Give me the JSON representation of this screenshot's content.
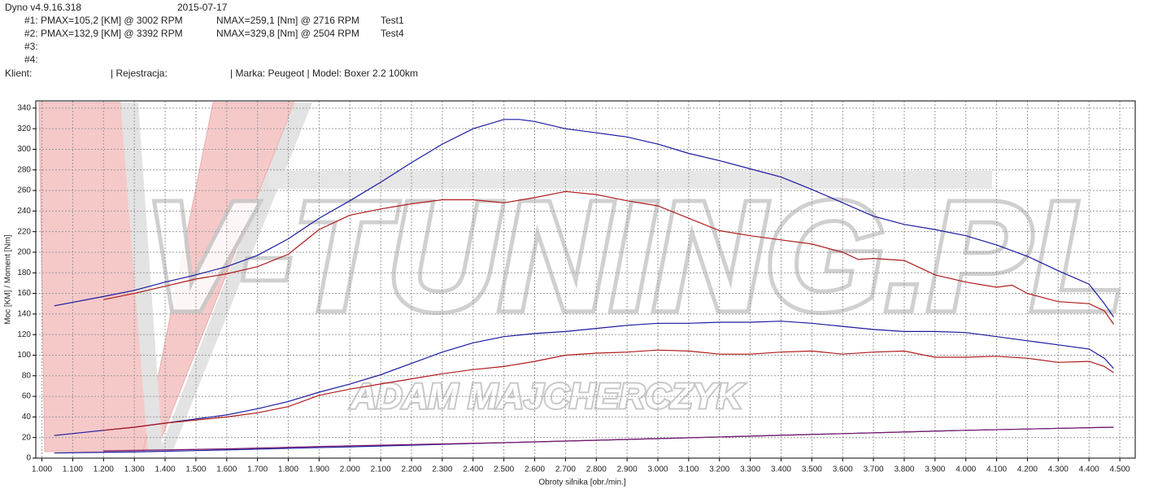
{
  "header": {
    "version": "Dyno v4.9.16.318",
    "date": "2015-07-17",
    "runs": [
      {
        "id": "#1:",
        "pmax": "PMAX=105,2 [KM] @ 3002 RPM",
        "nmax": "NMAX=259,1 [Nm] @ 2716 RPM",
        "name": "Test1"
      },
      {
        "id": "#2:",
        "pmax": "PMAX=132,9 [KM] @ 3392 RPM",
        "nmax": "NMAX=329,8 [Nm] @ 2504 RPM",
        "name": "Test4"
      },
      {
        "id": "#3:"
      },
      {
        "id": "#4:"
      }
    ],
    "client": "Klient:",
    "registration": "| Rejestracja:",
    "vehicle": "| Marka: Peugeot | Model: Boxer 2.2 100km"
  },
  "chart_data": {
    "type": "line",
    "xlabel": "Obroty silnika [obr./min.]",
    "ylabel": "Moc [KM] / Moment [Nm]",
    "watermark": "V-TUNING.PL",
    "watermark_sub": "ADAM MAJCHERCZYK",
    "xlim": [
      980,
      4550
    ],
    "ylim": [
      0,
      347
    ],
    "grid": true,
    "xticks": [
      {
        "value": 1000,
        "label": "1.000"
      },
      {
        "value": 1100,
        "label": "1.100"
      },
      {
        "value": 1200,
        "label": "1.200"
      },
      {
        "value": 1300,
        "label": "1.300"
      },
      {
        "value": 1400,
        "label": "1.400"
      },
      {
        "value": 1500,
        "label": "1.500"
      },
      {
        "value": 1600,
        "label": "1.600"
      },
      {
        "value": 1700,
        "label": "1.700"
      },
      {
        "value": 1800,
        "label": "1.800"
      },
      {
        "value": 1900,
        "label": "1.900"
      },
      {
        "value": 2000,
        "label": "2.000"
      },
      {
        "value": 2100,
        "label": "2.100"
      },
      {
        "value": 2200,
        "label": "2.200"
      },
      {
        "value": 2300,
        "label": "2.300"
      },
      {
        "value": 2400,
        "label": "2.400"
      },
      {
        "value": 2500,
        "label": "2.500"
      },
      {
        "value": 2600,
        "label": "2.600"
      },
      {
        "value": 2700,
        "label": "2.700"
      },
      {
        "value": 2800,
        "label": "2.800"
      },
      {
        "value": 2900,
        "label": "2.900"
      },
      {
        "value": 3000,
        "label": "3.000"
      },
      {
        "value": 3100,
        "label": "3.100"
      },
      {
        "value": 3200,
        "label": "3.200"
      },
      {
        "value": 3300,
        "label": "3.300"
      },
      {
        "value": 3400,
        "label": "3.400"
      },
      {
        "value": 3500,
        "label": "3.500"
      },
      {
        "value": 3600,
        "label": "3.600"
      },
      {
        "value": 3700,
        "label": "3.700"
      },
      {
        "value": 3800,
        "label": "3.800"
      },
      {
        "value": 3900,
        "label": "3.900"
      },
      {
        "value": 4000,
        "label": "4.000"
      },
      {
        "value": 4100,
        "label": "4.100"
      },
      {
        "value": 4200,
        "label": "4.200"
      },
      {
        "value": 4300,
        "label": "4.300"
      },
      {
        "value": 4400,
        "label": "4.400"
      },
      {
        "value": 4500,
        "label": "4.500"
      }
    ],
    "yticks": [
      0,
      20,
      40,
      60,
      80,
      100,
      120,
      140,
      160,
      180,
      200,
      220,
      240,
      260,
      280,
      300,
      320,
      340
    ],
    "series": [
      {
        "color": "#1a1aa0",
        "x": [
          1040,
          1200,
          1300,
          1400,
          1500,
          1600,
          1700,
          1800,
          1900,
          2000,
          2100,
          2200,
          2300,
          2400,
          2500,
          2550,
          2600,
          2700,
          2800,
          2900,
          3000,
          3100,
          3200,
          3300,
          3400,
          3500,
          3600,
          3700,
          3800,
          3900,
          4000,
          4100,
          4200,
          4300,
          4400,
          4450,
          4480
        ],
        "values": [
          148,
          157,
          163,
          171,
          178,
          186,
          197,
          213,
          233,
          250,
          268,
          287,
          305,
          320,
          329,
          329,
          327,
          320,
          316,
          312,
          305,
          296,
          289,
          281,
          273,
          261,
          248,
          235,
          227,
          222,
          216,
          207,
          196,
          182,
          169,
          150,
          137
        ]
      },
      {
        "color": "#b01a1a",
        "x": [
          1200,
          1300,
          1400,
          1500,
          1600,
          1700,
          1800,
          1900,
          2000,
          2100,
          2200,
          2300,
          2400,
          2500,
          2600,
          2700,
          2800,
          2900,
          3000,
          3100,
          3200,
          3300,
          3400,
          3500,
          3600,
          3650,
          3700,
          3800,
          3900,
          4000,
          4100,
          4150,
          4200,
          4300,
          4400,
          4450,
          4480
        ],
        "values": [
          154,
          160,
          167,
          174,
          179,
          186,
          198,
          222,
          236,
          242,
          247,
          251,
          251,
          248,
          253,
          259,
          256,
          250,
          245,
          233,
          221,
          216,
          212,
          208,
          200,
          193,
          194,
          192,
          178,
          171,
          166,
          168,
          160,
          152,
          150,
          143,
          130
        ]
      },
      {
        "color": "#1a1aa0",
        "x": [
          1040,
          1200,
          1300,
          1400,
          1500,
          1600,
          1700,
          1800,
          1900,
          2000,
          2100,
          2200,
          2300,
          2400,
          2500,
          2600,
          2700,
          2800,
          2900,
          3000,
          3100,
          3200,
          3300,
          3400,
          3500,
          3600,
          3700,
          3800,
          3900,
          4000,
          4100,
          4200,
          4300,
          4400,
          4450,
          4480
        ],
        "values": [
          22,
          27,
          30,
          34,
          38,
          42,
          48,
          55,
          64,
          72,
          81,
          92,
          103,
          112,
          118,
          121,
          123,
          126,
          129,
          131,
          131,
          132,
          132,
          133,
          131,
          128,
          125,
          123,
          123,
          122,
          118,
          114,
          110,
          106,
          97,
          87
        ]
      },
      {
        "color": "#b01a1a",
        "x": [
          1200,
          1300,
          1400,
          1500,
          1600,
          1700,
          1800,
          1900,
          2000,
          2100,
          2200,
          2300,
          2400,
          2500,
          2600,
          2700,
          2800,
          2900,
          3000,
          3100,
          3200,
          3300,
          3400,
          3500,
          3600,
          3700,
          3800,
          3900,
          4000,
          4100,
          4200,
          4300,
          4400,
          4450,
          4480
        ],
        "values": [
          27,
          30,
          34,
          37,
          40,
          44,
          50,
          61,
          67,
          72,
          77,
          82,
          86,
          89,
          94,
          100,
          102,
          103,
          105,
          104,
          101,
          101,
          103,
          104,
          101,
          103,
          104,
          98,
          98,
          99,
          97,
          93,
          94,
          89,
          83
        ]
      },
      {
        "color": "#1a1aa0",
        "x": [
          1040,
          1300,
          1600,
          2000,
          2500,
          3000,
          3500,
          4000,
          4480
        ],
        "values": [
          5,
          6,
          8,
          11,
          15,
          19,
          23,
          27,
          30
        ]
      },
      {
        "color": "#7a1a6a",
        "x": [
          1200,
          1600,
          2000,
          2500,
          3000,
          3500,
          4000,
          4480
        ],
        "values": [
          7,
          9,
          12,
          15,
          19,
          23,
          27,
          30
        ]
      }
    ]
  }
}
